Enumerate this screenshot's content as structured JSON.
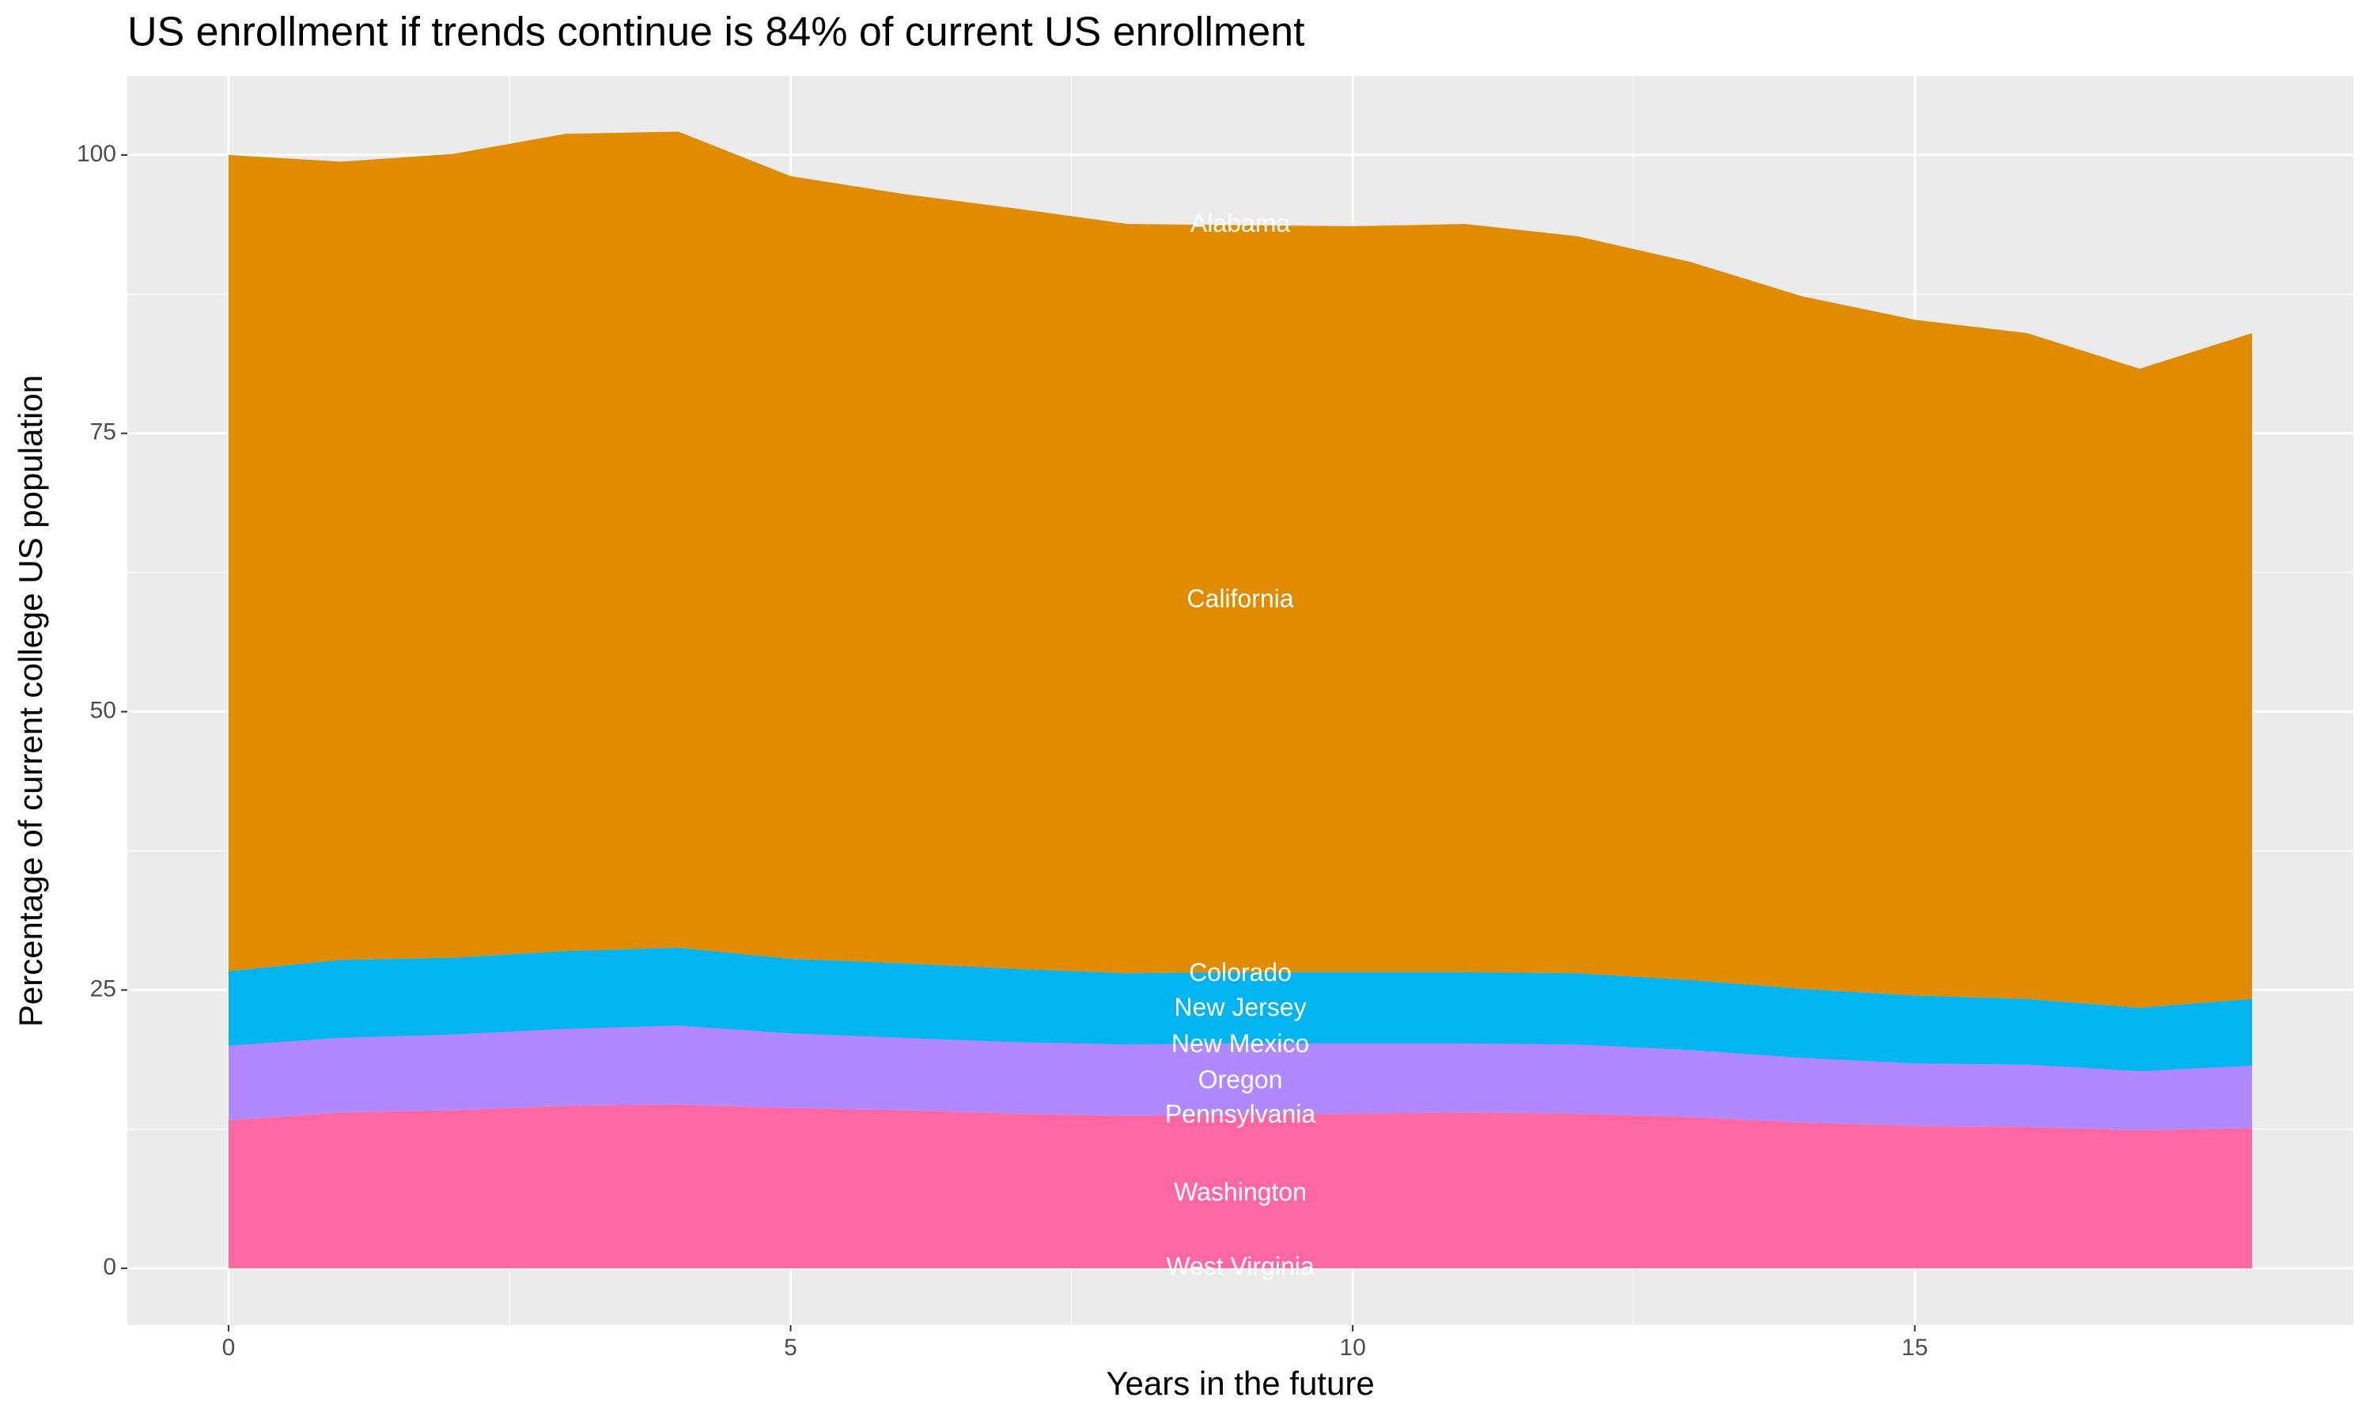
{
  "chart_data": {
    "type": "stacked_area",
    "title": "US enrollment if trends continue is 84% of current US enrollment",
    "x_label": "Years in the future",
    "y_label": "Percentage of current college US population",
    "x": [
      0,
      1,
      2,
      3,
      4,
      5,
      6,
      7,
      8,
      9,
      10,
      11,
      12,
      13,
      14,
      15,
      16,
      17,
      18
    ],
    "series": [
      {
        "color": "#ff67a4",
        "values": [
          13.3,
          14.0,
          14.2,
          14.6,
          14.7,
          14.4,
          14.2,
          13.9,
          13.7,
          13.8,
          13.9,
          14.0,
          13.9,
          13.6,
          13.1,
          12.8,
          12.7,
          12.4,
          12.6
        ]
      },
      {
        "color": "#b088ff",
        "values": [
          6.7,
          6.7,
          6.8,
          6.9,
          7.1,
          6.7,
          6.5,
          6.4,
          6.4,
          6.4,
          6.3,
          6.2,
          6.2,
          6.0,
          5.8,
          5.6,
          5.6,
          5.3,
          5.6
        ]
      },
      {
        "color": "#00b4f0",
        "values": [
          6.7,
          7.0,
          6.9,
          7.0,
          7.0,
          6.7,
          6.7,
          6.6,
          6.4,
          6.4,
          6.4,
          6.4,
          6.4,
          6.3,
          6.2,
          6.1,
          5.9,
          5.7,
          6.0
        ]
      },
      {
        "color": "#e08b00",
        "values": [
          73.3,
          71.7,
          72.2,
          73.4,
          73.3,
          70.3,
          69.1,
          68.3,
          67.3,
          67.1,
          67.0,
          67.2,
          66.2,
          64.5,
          62.2,
          60.7,
          59.8,
          57.4,
          59.8
        ]
      }
    ],
    "annotations": [
      {
        "text": "Alabama",
        "x": 9,
        "y": 93.7
      },
      {
        "text": "California",
        "x": 9,
        "y": 60.0
      },
      {
        "text": "Colorado",
        "x": 9,
        "y": 26.4
      },
      {
        "text": "New Jersey",
        "x": 9,
        "y": 23.3
      },
      {
        "text": "New Mexico",
        "x": 9,
        "y": 20.0
      },
      {
        "text": "Oregon",
        "x": 9,
        "y": 16.8
      },
      {
        "text": "Pennsylvania",
        "x": 9,
        "y": 13.7
      },
      {
        "text": "Washington",
        "x": 9,
        "y": 6.7
      },
      {
        "text": "West Virginia",
        "x": 9,
        "y": 0
      }
    ],
    "xlim": [
      -0.9,
      18.9
    ],
    "ylim": [
      -5.1,
      107.1
    ],
    "xticks": [
      0,
      5,
      10,
      15
    ],
    "yticks": [
      0,
      25,
      50,
      75,
      100
    ],
    "grid": true
  }
}
